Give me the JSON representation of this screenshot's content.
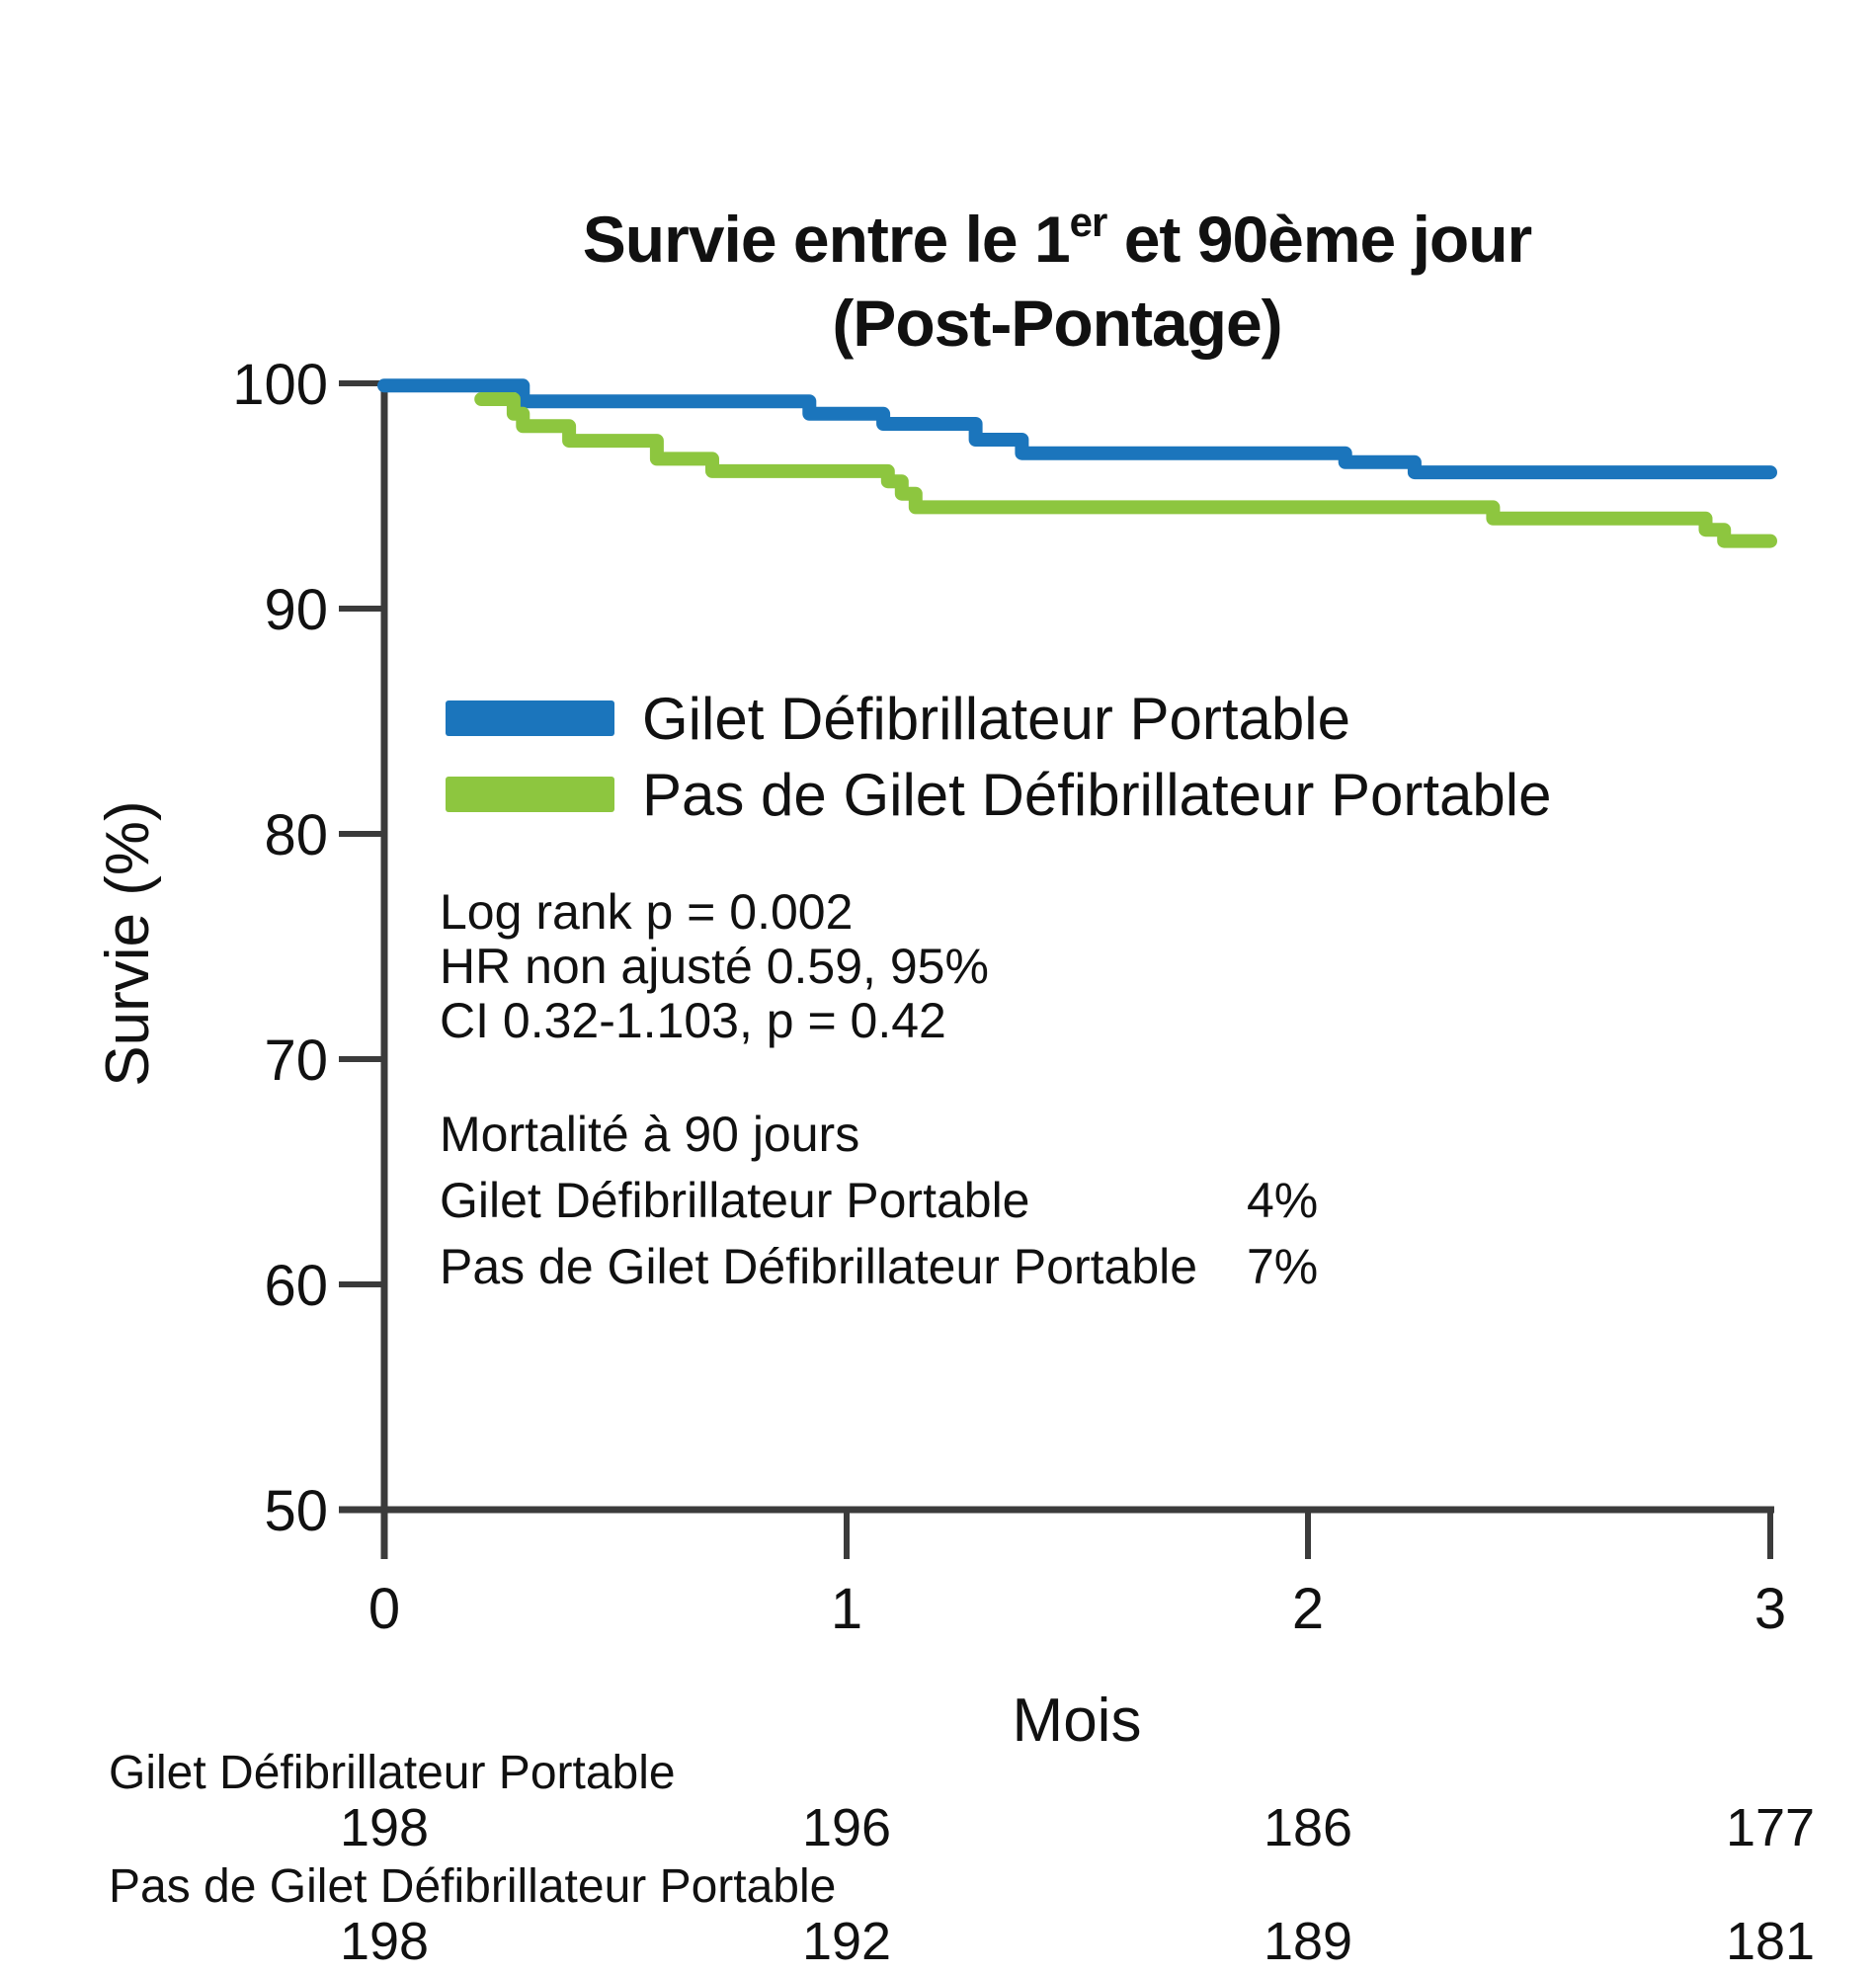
{
  "title": {
    "line1_pre": "Survie entre le 1",
    "line1_sup": "er",
    "line1_post": " et 90ème jour",
    "line2": "(Post-Pontage)"
  },
  "y_axis": {
    "label": "Survie (%)",
    "ticks": [
      "100",
      "90",
      "80",
      "70",
      "60",
      "50"
    ]
  },
  "x_axis": {
    "label": "Mois",
    "ticks": [
      "0",
      "1",
      "2",
      "3"
    ]
  },
  "legend": {
    "items": [
      {
        "label": "Gilet Défibrillateur Portable",
        "color": "#1B75BC"
      },
      {
        "label": "Pas de Gilet Défibrillateur Portable",
        "color": "#8DC63F"
      }
    ]
  },
  "stats": {
    "line1": "Log rank p = 0.002",
    "line2": "HR non ajusté 0.59, 95%",
    "line3": "CI 0.32-1.103, p = 0.42"
  },
  "mortality": {
    "heading": "Mortalité à 90 jours",
    "rows": [
      {
        "label": "Gilet Défibrillateur Portable",
        "value": "4%"
      },
      {
        "label": "Pas de Gilet Défibrillateur Portable",
        "value": "7%"
      }
    ]
  },
  "at_risk": {
    "rows": [
      {
        "label": "Gilet Défibrillateur Portable",
        "counts": [
          "198",
          "196",
          "186",
          "177"
        ]
      },
      {
        "label": "Pas de Gilet Défibrillateur Portable",
        "counts": [
          "198",
          "192",
          "189",
          "181"
        ]
      }
    ]
  },
  "chart_data": {
    "type": "line",
    "subtype": "kaplan-meier-step",
    "title": "Survie entre le 1er et 90ème jour (Post-Pontage)",
    "xlabel": "Mois",
    "ylabel": "Survie (%)",
    "xlim": [
      0,
      3
    ],
    "ylim": [
      50,
      100
    ],
    "x_ticks": [
      0,
      1,
      2,
      3
    ],
    "y_ticks": [
      50,
      60,
      70,
      80,
      90,
      100
    ],
    "grid": false,
    "legend_position": "inside-upper-left",
    "series": [
      {
        "name": "Gilet Défibrillateur Portable",
        "color": "#1B75BC",
        "steps": [
          [
            0,
            99.9
          ],
          [
            0.3,
            99.2
          ],
          [
            0.92,
            98.65
          ],
          [
            1.08,
            98.2
          ],
          [
            1.28,
            97.5
          ],
          [
            1.38,
            96.9
          ],
          [
            2.08,
            96.5
          ],
          [
            2.23,
            96.05
          ]
        ],
        "end_x": 3.0,
        "final_value": 96.05
      },
      {
        "name": "Pas de Gilet Défibrillateur Portable",
        "color": "#8DC63F",
        "steps": [
          [
            0.21,
            99.3
          ],
          [
            0.28,
            98.65
          ],
          [
            0.3,
            98.1
          ],
          [
            0.4,
            97.45
          ],
          [
            0.59,
            96.65
          ],
          [
            0.71,
            96.1
          ],
          [
            1.09,
            95.65
          ],
          [
            1.12,
            95.1
          ],
          [
            1.15,
            94.5
          ],
          [
            2.4,
            94.0
          ],
          [
            2.86,
            93.5
          ],
          [
            2.9,
            93.0
          ]
        ],
        "end_x": 3.0,
        "final_value": 93.0
      }
    ],
    "annotations": [
      "Log rank p = 0.002",
      "HR non ajusté 0.59, 95%",
      "CI 0.32-1.103, p = 0.42",
      "Mortalité à 90 jours",
      "Gilet Défibrillateur Portable 4%",
      "Pas de Gilet Défibrillateur Portable 7%"
    ],
    "number_at_risk": {
      "months": [
        0,
        1,
        2,
        3
      ],
      "series": [
        {
          "name": "Gilet Défibrillateur Portable",
          "counts": [
            198,
            196,
            186,
            177
          ]
        },
        {
          "name": "Pas de Gilet Défibrillateur Portable",
          "counts": [
            198,
            192,
            189,
            181
          ]
        }
      ]
    }
  }
}
